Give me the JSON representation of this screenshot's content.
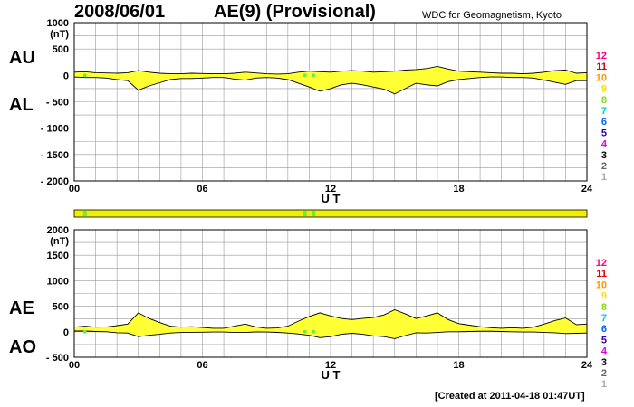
{
  "header": {
    "date": "2008/06/01",
    "title": "AE(9)  (Provisional)",
    "source": "WDC for Geomagnetism, Kyoto"
  },
  "footer": {
    "created": "[Created at 2011-04-18 01:47UT]"
  },
  "colors": {
    "fill": "#ffff33",
    "status_bar": "#f0f000",
    "status_flag": "#66ee44",
    "grid": "#999999",
    "point_marker": "#66ee44"
  },
  "station_legend": [
    {
      "label": "12",
      "color": "#ff0080"
    },
    {
      "label": "11",
      "color": "#dd0000"
    },
    {
      "label": "10",
      "color": "#ff9900"
    },
    {
      "label": "9",
      "color": "#ffdd00"
    },
    {
      "label": "8",
      "color": "#88dd00"
    },
    {
      "label": "7",
      "color": "#00cccc"
    },
    {
      "label": "6",
      "color": "#0066ff"
    },
    {
      "label": "5",
      "color": "#3300aa"
    },
    {
      "label": "4",
      "color": "#dd00dd"
    },
    {
      "label": "3",
      "color": "#000000"
    },
    {
      "label": "2",
      "color": "#666666"
    },
    {
      "label": "1",
      "color": "#aaaaaa"
    }
  ],
  "status_bar": {
    "flags_ut": [
      0.5,
      10.8,
      11.2
    ]
  },
  "chart_data": [
    {
      "type": "area",
      "upper_label": "AU",
      "lower_label": "AL",
      "unit": "(nT)",
      "xlabel": "U T",
      "xlim": [
        0,
        24
      ],
      "ylim": [
        -2000,
        1000
      ],
      "xticks": [
        0,
        6,
        12,
        18,
        24
      ],
      "xtick_labels": [
        "00",
        "06",
        "12",
        "18",
        "24"
      ],
      "yticks": [
        1000,
        500,
        0,
        -500,
        -1000,
        -1500,
        -2000
      ],
      "ytick_labels": [
        "1000",
        "500",
        "0",
        "- 500",
        "- 1000",
        "- 1500",
        "- 2000"
      ],
      "grid": true,
      "x": [
        0,
        0.5,
        1,
        1.5,
        2,
        2.5,
        3,
        3.5,
        4,
        4.5,
        5,
        5.5,
        6,
        6.5,
        7,
        7.5,
        8,
        8.5,
        9,
        9.5,
        10,
        10.5,
        11,
        11.5,
        12,
        12.5,
        13,
        13.5,
        14,
        14.5,
        15,
        15.5,
        16,
        16.5,
        17,
        17.5,
        18,
        18.5,
        19,
        19.5,
        20,
        20.5,
        21,
        21.5,
        22,
        22.5,
        23,
        23.5,
        24
      ],
      "series": [
        {
          "name": "AU",
          "values": [
            60,
            70,
            50,
            45,
            40,
            50,
            90,
            60,
            40,
            30,
            30,
            40,
            35,
            30,
            30,
            40,
            60,
            45,
            30,
            25,
            30,
            60,
            80,
            70,
            60,
            80,
            90,
            80,
            60,
            70,
            80,
            100,
            110,
            130,
            170,
            120,
            80,
            70,
            60,
            50,
            40,
            40,
            30,
            40,
            60,
            90,
            100,
            40,
            50
          ]
        },
        {
          "name": "AL",
          "values": [
            -30,
            -40,
            -40,
            -50,
            -80,
            -100,
            -280,
            -200,
            -140,
            -80,
            -60,
            -60,
            -50,
            -40,
            -40,
            -70,
            -90,
            -50,
            -40,
            -50,
            -80,
            -150,
            -220,
            -300,
            -250,
            -180,
            -150,
            -180,
            -220,
            -260,
            -350,
            -250,
            -150,
            -180,
            -200,
            -120,
            -80,
            -60,
            -40,
            -30,
            -30,
            -40,
            -40,
            -50,
            -90,
            -130,
            -170,
            -100,
            -100
          ]
        }
      ]
    },
    {
      "type": "area",
      "upper_label": "AE",
      "lower_label": "AO",
      "unit": "(nT)",
      "xlabel": "U T",
      "xlim": [
        0,
        24
      ],
      "ylim": [
        -500,
        2000
      ],
      "xticks": [
        0,
        6,
        12,
        18,
        24
      ],
      "xtick_labels": [
        "00",
        "06",
        "12",
        "18",
        "24"
      ],
      "yticks": [
        2000,
        1500,
        1000,
        500,
        0,
        -500
      ],
      "ytick_labels": [
        "2000",
        "1500",
        "1000",
        "500",
        "0",
        "- 500"
      ],
      "grid": true,
      "x": [
        0,
        0.5,
        1,
        1.5,
        2,
        2.5,
        3,
        3.5,
        4,
        4.5,
        5,
        5.5,
        6,
        6.5,
        7,
        7.5,
        8,
        8.5,
        9,
        9.5,
        10,
        10.5,
        11,
        11.5,
        12,
        12.5,
        13,
        13.5,
        14,
        14.5,
        15,
        15.5,
        16,
        16.5,
        17,
        17.5,
        18,
        18.5,
        19,
        19.5,
        20,
        20.5,
        21,
        21.5,
        22,
        22.5,
        23,
        23.5,
        24
      ],
      "series": [
        {
          "name": "AE",
          "values": [
            90,
            110,
            90,
            95,
            120,
            150,
            370,
            260,
            180,
            110,
            90,
            100,
            85,
            70,
            70,
            110,
            150,
            95,
            70,
            75,
            110,
            210,
            300,
            370,
            310,
            260,
            240,
            260,
            280,
            330,
            430,
            350,
            260,
            310,
            370,
            240,
            160,
            130,
            100,
            80,
            70,
            80,
            70,
            90,
            150,
            220,
            270,
            140,
            150
          ]
        },
        {
          "name": "AO",
          "values": [
            15,
            15,
            5,
            0,
            -20,
            -25,
            -95,
            -70,
            -50,
            -25,
            -15,
            -10,
            -8,
            -5,
            -5,
            -15,
            -15,
            -3,
            -5,
            -12,
            -25,
            -45,
            -70,
            -115,
            -95,
            -50,
            -30,
            -50,
            -80,
            -95,
            -135,
            -75,
            -20,
            -25,
            -15,
            0,
            0,
            5,
            10,
            10,
            5,
            0,
            -5,
            -5,
            -15,
            -20,
            -35,
            -30,
            -25
          ]
        }
      ]
    }
  ]
}
